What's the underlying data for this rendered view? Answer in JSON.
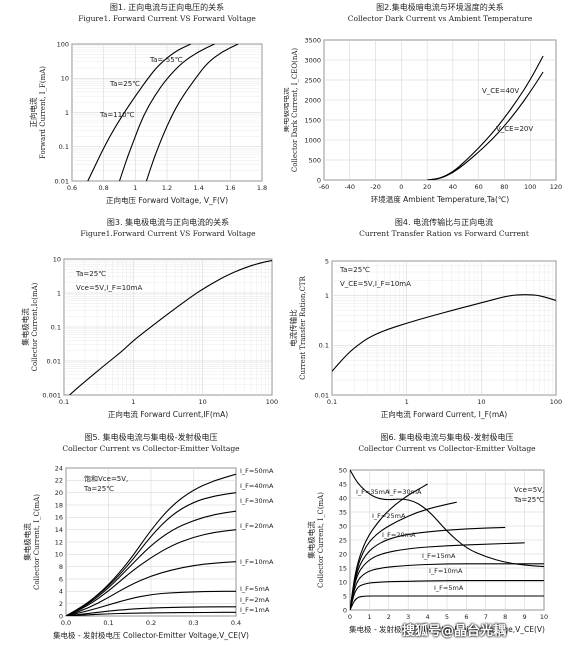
{
  "watermark": "搜狐号@晶台光耦",
  "chart_data": [
    {
      "id": "fig1",
      "type": "line",
      "title_cn": "图1. 正向电流与正向电压的关系",
      "title_en": "Figure1. Forward Current VS Forward Voltage",
      "xlabel": "正向电压 Forward Voltage, V_F(V)",
      "ylabel_cn": "正向电流",
      "ylabel_en": "Forward Current, I_F(mA)",
      "xlim": [
        0.6,
        1.8
      ],
      "ylim": [
        0.01,
        100
      ],
      "yscale": "log",
      "grid": true,
      "xticks": [
        "0.6",
        "0.8",
        "1",
        "1.2",
        "1.4",
        "1.6",
        "1.8"
      ],
      "yticks": [
        "0.01",
        "0.1",
        "1",
        "10",
        "100"
      ],
      "annotations": [
        "Ta=-55℃",
        "Ta=25℃",
        "Ta=110℃"
      ],
      "series": [
        {
          "name": "Ta=110℃",
          "x": [
            0.7,
            0.78,
            0.85,
            0.93,
            1.0,
            1.08,
            1.15,
            1.25,
            1.35
          ],
          "y": [
            0.01,
            0.06,
            0.25,
            1,
            3,
            10,
            25,
            60,
            100
          ]
        },
        {
          "name": "Ta=25℃",
          "x": [
            0.9,
            0.95,
            1.0,
            1.05,
            1.12,
            1.2,
            1.3,
            1.4,
            1.5
          ],
          "y": [
            0.01,
            0.05,
            0.2,
            0.8,
            3,
            10,
            30,
            60,
            100
          ]
        },
        {
          "name": "Ta=-55℃",
          "x": [
            1.07,
            1.12,
            1.18,
            1.24,
            1.3,
            1.38,
            1.46,
            1.55,
            1.65
          ],
          "y": [
            0.01,
            0.05,
            0.25,
            1,
            3,
            10,
            30,
            60,
            100
          ]
        }
      ]
    },
    {
      "id": "fig2",
      "type": "line",
      "title_cn": "图2.集电极暗电流与环境温度的关系",
      "title_en": "Collector Dark Current vs Ambient Temperature",
      "xlabel": "环境温度 Ambient Temperature,Ta(℃)",
      "ylabel_cn": "集电极暗电流",
      "ylabel_en": "Collector Dark Current, I_CEO(nA)",
      "xlim": [
        -60,
        120
      ],
      "ylim": [
        0,
        3500
      ],
      "grid": true,
      "xticks": [
        "-60",
        "-40",
        "-20",
        "0",
        "20",
        "40",
        "60",
        "80",
        "100",
        "120"
      ],
      "yticks": [
        "0",
        "500",
        "1000",
        "1500",
        "2000",
        "2500",
        "3000",
        "3500"
      ],
      "annotations": [
        "V_CE=40V",
        "V_CE=20V"
      ],
      "series": [
        {
          "name": "V_CE=40V",
          "x": [
            20,
            30,
            40,
            50,
            60,
            70,
            80,
            90,
            100,
            110
          ],
          "y": [
            0,
            40,
            200,
            480,
            800,
            1150,
            1550,
            2000,
            2500,
            3100
          ]
        },
        {
          "name": "V_CE=20V",
          "x": [
            20,
            30,
            40,
            50,
            60,
            70,
            80,
            90,
            100,
            110
          ],
          "y": [
            0,
            30,
            180,
            420,
            700,
            1000,
            1350,
            1750,
            2200,
            2700
          ]
        }
      ]
    },
    {
      "id": "fig3",
      "type": "line",
      "title_cn": "图3. 集电极电流与正向电流的关系",
      "title_en": "Figure1.Forward Current VS Forward Voltage",
      "xlabel": "正向电流 Forward Current,IF(mA)",
      "ylabel_cn": "集电极电流",
      "ylabel_en": "Collector Current,Ic(mA)",
      "xscale": "log",
      "yscale": "log",
      "xlim": [
        0.1,
        100
      ],
      "ylim": [
        0.001,
        10
      ],
      "grid": true,
      "xticks": [
        "0.1",
        "1",
        "10",
        "100"
      ],
      "yticks": [
        "0.001",
        "0.01",
        "0.1",
        "1",
        "10"
      ],
      "annotations": [
        "Ta=25℃",
        "Vce=5V,I_F=10mA"
      ],
      "series": [
        {
          "name": "Ic",
          "x": [
            0.12,
            0.2,
            0.4,
            0.7,
            1,
            2,
            4,
            7,
            10,
            20,
            40,
            70,
            100
          ],
          "y": [
            0.001,
            0.0025,
            0.008,
            0.02,
            0.04,
            0.12,
            0.35,
            0.8,
            1.3,
            3,
            5.5,
            7.8,
            9
          ]
        }
      ]
    },
    {
      "id": "fig4",
      "type": "line",
      "title_cn": "图4. 电流传输比与正向电流",
      "title_en": "Current Transfer Ration vs Forward Current",
      "xlabel": "正向电流 Forward Current, I_F(mA)",
      "ylabel_cn": "电流传输比",
      "ylabel_en": "Current Transfer Ration,CTR",
      "xscale": "log",
      "yscale": "log",
      "xlim": [
        0.1,
        100
      ],
      "ylim": [
        0.01,
        5
      ],
      "grid": true,
      "xticks": [
        "0.1",
        "1",
        "10",
        "100"
      ],
      "yticks": [
        "0.01",
        "0.1",
        "1",
        "5"
      ],
      "annotations": [
        "Ta=25℃",
        "V_CE=5V,I_F=10mA"
      ],
      "series": [
        {
          "name": "CTR",
          "x": [
            0.1,
            0.15,
            0.2,
            0.3,
            0.5,
            1,
            2,
            5,
            10,
            20,
            30,
            50,
            70,
            100
          ],
          "y": [
            0.03,
            0.06,
            0.09,
            0.14,
            0.2,
            0.28,
            0.38,
            0.55,
            0.72,
            0.95,
            1.05,
            1.05,
            0.95,
            0.8
          ]
        }
      ]
    },
    {
      "id": "fig5",
      "type": "line",
      "title_cn": "图5. 集电极电流与集电极-发射极电压",
      "title_en": "Collector Current vs Collector-Emitter Voltage",
      "xlabel": "集电极 - 发射极电压 Collector-Emitter Voltage,V_CE(V)",
      "ylabel_cn": "集电极电流",
      "ylabel_en": "Collector Current, I_C(mA)",
      "xlim": [
        0,
        0.4
      ],
      "ylim": [
        0,
        24
      ],
      "grid": true,
      "xticks": [
        "0.0",
        "0.1",
        "0.2",
        "0.3",
        "0.4"
      ],
      "yticks": [
        "0",
        "2",
        "4",
        "6",
        "8",
        "10",
        "12",
        "14",
        "16",
        "18",
        "20",
        "22",
        "24"
      ],
      "annotations": [
        "饱和Vce=5V,",
        "Ta=25℃"
      ],
      "series": [
        {
          "name": "I_F=50mA",
          "x": [
            0,
            0.05,
            0.1,
            0.15,
            0.2,
            0.25,
            0.3,
            0.35,
            0.4
          ],
          "y": [
            0,
            2,
            5,
            9,
            14,
            18,
            20.5,
            22,
            23
          ]
        },
        {
          "name": "I_F=40mA",
          "x": [
            0,
            0.05,
            0.1,
            0.15,
            0.2,
            0.25,
            0.3,
            0.35,
            0.4
          ],
          "y": [
            0,
            2,
            4.8,
            8.5,
            13,
            16.5,
            18.5,
            19.5,
            20
          ]
        },
        {
          "name": "I_F=30mA",
          "x": [
            0,
            0.05,
            0.1,
            0.15,
            0.2,
            0.25,
            0.3,
            0.35,
            0.4
          ],
          "y": [
            0,
            1.8,
            4.5,
            8,
            11.5,
            14,
            15.5,
            16.5,
            17
          ]
        },
        {
          "name": "I_F=20mA",
          "x": [
            0,
            0.05,
            0.1,
            0.15,
            0.2,
            0.25,
            0.3,
            0.35,
            0.4
          ],
          "y": [
            0,
            1.6,
            4,
            7,
            9.5,
            11.5,
            12.8,
            13.6,
            14
          ]
        },
        {
          "name": "I_F=10mA",
          "x": [
            0,
            0.05,
            0.1,
            0.15,
            0.2,
            0.25,
            0.3,
            0.35,
            0.4
          ],
          "y": [
            0,
            1.2,
            3,
            5,
            6.5,
            7.5,
            8.2,
            8.6,
            8.8
          ]
        },
        {
          "name": "I_F=5mA",
          "x": [
            0,
            0.05,
            0.1,
            0.15,
            0.2,
            0.25,
            0.3,
            0.35,
            0.4
          ],
          "y": [
            0,
            0.8,
            1.8,
            2.8,
            3.5,
            3.8,
            3.9,
            4,
            4
          ]
        },
        {
          "name": "I_F=2mA",
          "x": [
            0,
            0.05,
            0.1,
            0.15,
            0.2,
            0.25,
            0.3,
            0.35,
            0.4
          ],
          "y": [
            0,
            0.4,
            0.8,
            1.1,
            1.3,
            1.4,
            1.45,
            1.5,
            1.5
          ]
        },
        {
          "name": "I_F=1mA",
          "x": [
            0,
            0.05,
            0.1,
            0.15,
            0.2,
            0.25,
            0.3,
            0.35,
            0.4
          ],
          "y": [
            0,
            0.2,
            0.35,
            0.45,
            0.5,
            0.55,
            0.55,
            0.6,
            0.6
          ]
        }
      ]
    },
    {
      "id": "fig6",
      "type": "line",
      "title_cn": "图6. 集电极电流与集电极-发射极电压",
      "title_en": "Collector Current vs Collector-Emitter Voltage",
      "xlabel": "集电极 - 发射极电压 Collector-Emitter Voltage,V_CE(V)",
      "ylabel_cn": "集电极电流",
      "ylabel_en": "Collector Current, I_C(mA)",
      "xlim": [
        0,
        10
      ],
      "ylim": [
        0,
        50
      ],
      "grid": true,
      "xticks": [
        "0",
        "1",
        "2",
        "3",
        "4",
        "5",
        "6",
        "7",
        "8",
        "9",
        "10"
      ],
      "yticks": [
        "0",
        "5",
        "10",
        "15",
        "20",
        "25",
        "30",
        "35",
        "40",
        "45",
        "50"
      ],
      "annotations": [
        "Vce=5V,",
        "Ta=25℃"
      ],
      "series": [
        {
          "name": "I_F=35mA",
          "x": [
            0,
            0.3,
            0.8,
            1.5,
            2.2,
            3,
            3.5,
            4
          ],
          "y": [
            0,
            15,
            25,
            32,
            37,
            41,
            43,
            45
          ]
        },
        {
          "name": "I_F=30mA",
          "x": [
            0,
            0.3,
            0.8,
            1.5,
            2.5,
            3.5,
            4.5,
            5.5
          ],
          "y": [
            0,
            14,
            23,
            28,
            32,
            35,
            37,
            38.5
          ]
        },
        {
          "name": "I_F=25mA",
          "x": [
            0,
            0.3,
            0.8,
            1.5,
            2.5,
            4,
            6,
            8
          ],
          "y": [
            0,
            13,
            20,
            24,
            26.5,
            28,
            29,
            29.5
          ]
        },
        {
          "name": "I_F=20mA",
          "x": [
            0,
            0.3,
            0.8,
            1.5,
            3,
            5,
            7,
            9
          ],
          "y": [
            0,
            12,
            17,
            20,
            22,
            23,
            23.5,
            24
          ]
        },
        {
          "name": "I_F=15mA",
          "x": [
            0,
            0.3,
            0.8,
            1.5,
            3,
            5,
            7,
            10
          ],
          "y": [
            0,
            10,
            13.5,
            15,
            16,
            16.5,
            16.5,
            16.5
          ]
        },
        {
          "name": "I_F=10mA",
          "x": [
            0,
            0.3,
            0.8,
            1.5,
            3,
            5,
            7,
            10
          ],
          "y": [
            0,
            8,
            9.5,
            10,
            10.3,
            10.5,
            10.5,
            10.5
          ]
        },
        {
          "name": "I_F=5mA",
          "x": [
            0,
            0.3,
            0.8,
            1.5,
            3,
            5,
            7,
            10
          ],
          "y": [
            0,
            4.5,
            5,
            5,
            5,
            5,
            5,
            5
          ]
        }
      ],
      "extra_lines": [
        {
          "name": "envelope",
          "x": [
            0,
            0.5,
            1.5,
            3,
            4,
            5,
            6,
            7,
            8,
            9,
            10
          ],
          "y": [
            50,
            44,
            39,
            40,
            36,
            28,
            22,
            19,
            17,
            16,
            15.5
          ]
        }
      ]
    }
  ]
}
